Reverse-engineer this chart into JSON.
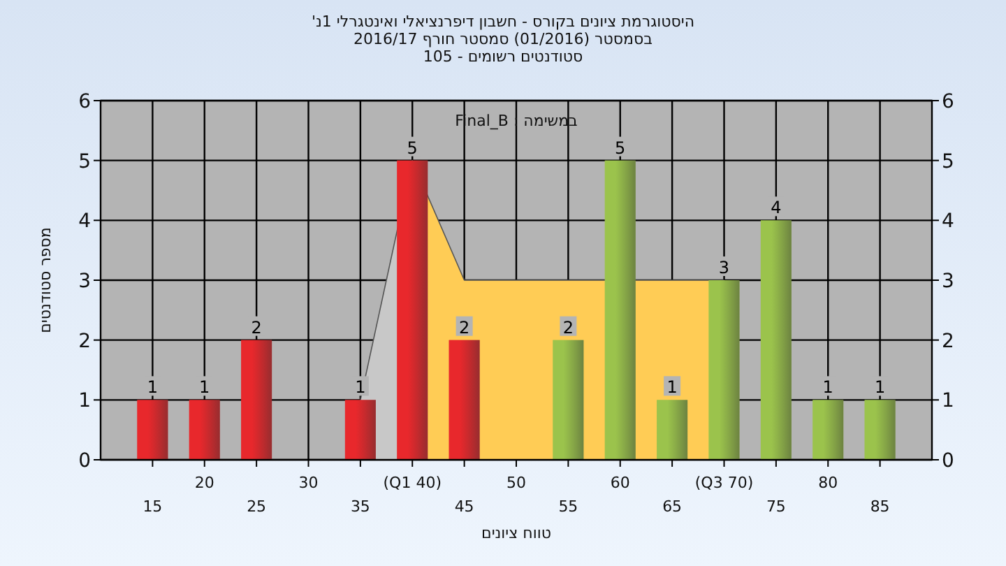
{
  "chart_data": {
    "type": "bar",
    "title": "היסטוגרמת ציונים בקורס - חשבון דיפרנציאלי ואינטגרלי 1נ'",
    "subtitle": "בסמסטר (01/2016) סמסטר חורף 2016/17\nסטודנטים רשומים - 105",
    "xlabel": "טווח ציונים",
    "ylabel": "מספר סטודנטים",
    "annotations": [
      "במשימה : Final_B"
    ],
    "categories": [
      "15",
      "20",
      "25",
      "30",
      "35",
      "(Q1 40)",
      "45",
      "50",
      "55",
      "60",
      "65",
      "(Q3 70)",
      "75",
      "80",
      "85"
    ],
    "series": [
      {
        "type": "area",
        "color": "#c8c8c8",
        "values": [
          null,
          null,
          null,
          null,
          1,
          5,
          null,
          null,
          null,
          null,
          null,
          null,
          null,
          null,
          null
        ]
      },
      {
        "type": "area",
        "color": "#ffcc55",
        "values": [
          null,
          null,
          null,
          null,
          null,
          5,
          3,
          3,
          3,
          null,
          3,
          3,
          null,
          null,
          null
        ]
      },
      {
        "values": [
          1,
          1,
          2,
          0,
          1,
          5,
          2,
          0,
          2,
          5,
          1,
          3,
          4,
          1,
          1
        ],
        "colors": [
          "#e8282c",
          "#e8282c",
          "#e8282c",
          "#e8282c",
          "#e8282c",
          "#e8282c",
          "#e8282c",
          "#9bc34c",
          "#9bc34c",
          "#9bc34c",
          "#9bc34c",
          "#9bc34c",
          "#9bc34c",
          "#9bc34c",
          "#9bc34c"
        ],
        "value_labels": [
          "1",
          "1",
          "2",
          null,
          "1",
          "5",
          "2",
          null,
          "2",
          "5",
          "1",
          "3",
          "4",
          "1",
          "1"
        ]
      }
    ],
    "ylim": [
      0,
      6
    ],
    "yticks": [
      0,
      1,
      2,
      3,
      4,
      5,
      6
    ],
    "y2lim": [
      0,
      6
    ],
    "y2ticks": [
      0,
      1,
      2,
      3,
      4,
      5,
      6
    ],
    "grid": true
  }
}
